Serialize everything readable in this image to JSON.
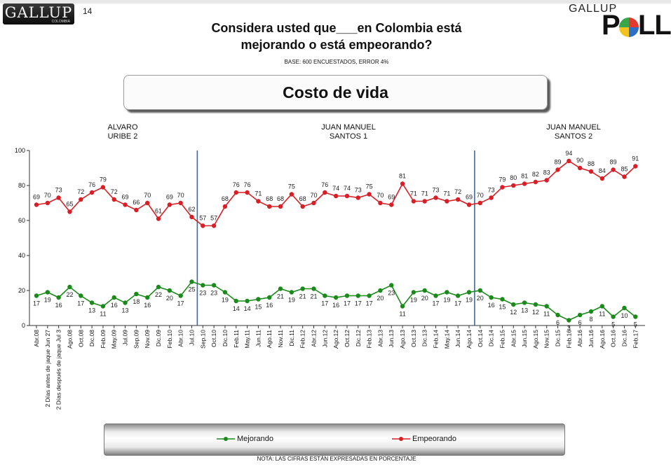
{
  "header": {
    "logo_left": "GALLUP",
    "logo_left_sub": "COLOMBIA",
    "page_number": "14",
    "logo_right_top": "GALLUP",
    "logo_right_p": "P",
    "logo_right_ll": "LL",
    "title_line1": "Considera usted que___en Colombia está",
    "title_line2": "mejorando o está empeorando?",
    "base": "BASE: 600 ENCUESTADOS, ERROR 4%",
    "topic": "Costo de vida",
    "note": "NOTA: LAS CIFRAS ESTÁN EXPRESADAS EN PORCENTAJE"
  },
  "periods": [
    {
      "line1": "ALVARO",
      "line2": "URIBE 2"
    },
    {
      "line1": "JUAN MANUEL",
      "line2": "SANTOS 1"
    },
    {
      "line1": "JUAN MANUEL",
      "line2": "SANTOS 2"
    }
  ],
  "colors": {
    "mejorando": "#1a8a1a",
    "empeorando": "#d81f26",
    "divider": "#3b6aa0"
  },
  "chart_data": {
    "type": "line",
    "ylim": [
      0,
      100
    ],
    "yticks": [
      0,
      20,
      40,
      60,
      80,
      100
    ],
    "categories": [
      "Abr.08",
      "2 Días antes de jaque Jun 27",
      "2 Días después de jaque Jul 3",
      "Ago.08",
      "Oct.08",
      "Dic.08",
      "Feb.09",
      "May.09",
      "Jul.09",
      "Sep.09",
      "Nov.09",
      "Dic.09",
      "Feb.10",
      "Abr.10",
      "Jul.10",
      "Sep.10",
      "Oct.10",
      "Dic.10",
      "Feb.11",
      "May.11",
      "Jun.11",
      "Ago.11",
      "Nov.11",
      "Dic.11",
      "Feb.12",
      "Abr.12",
      "Jun.12",
      "Ago.12",
      "Oct.12",
      "Dic.12",
      "Feb.13",
      "Abr.13",
      "Jun.13",
      "Ago.13",
      "Oct.13",
      "Dic.13",
      "Feb.14",
      "May.14",
      "Jun.14",
      "Ago.14",
      "Oct.14",
      "Dic.14",
      "Feb.15",
      "Abr.15",
      "Jun.15",
      "Ago.15",
      "Nov.15",
      "Dic.15",
      "Feb.16",
      "Abr.16",
      "Jun.16",
      "Ago.16",
      "Oct.16",
      "Dic.16",
      "Feb.17"
    ],
    "series": [
      {
        "name": "Mejorando",
        "values": [
          17,
          19,
          16,
          22,
          17,
          13,
          11,
          16,
          13,
          18,
          16,
          22,
          20,
          17,
          25,
          23,
          23,
          19,
          14,
          14,
          15,
          16,
          21,
          19,
          21,
          21,
          17,
          16,
          17,
          17,
          17,
          20,
          23,
          11,
          19,
          20,
          17,
          19,
          17,
          19,
          20,
          16,
          15,
          12,
          13,
          12,
          11,
          6,
          3,
          6,
          8,
          11,
          5,
          10,
          5
        ]
      },
      {
        "name": "Empeorando",
        "values": [
          69,
          70,
          73,
          65,
          72,
          76,
          79,
          72,
          69,
          66,
          70,
          61,
          69,
          70,
          62,
          57,
          57,
          68,
          76,
          76,
          71,
          68,
          68,
          75,
          68,
          70,
          76,
          74,
          74,
          73,
          75,
          70,
          69,
          81,
          71,
          71,
          73,
          71,
          72,
          69,
          70,
          73,
          79,
          80,
          81,
          82,
          83,
          89,
          94,
          90,
          88,
          84,
          89,
          85,
          91
        ]
      }
    ],
    "dividers_after": [
      "Jul.10",
      "Ago.14"
    ],
    "legend": [
      "Mejorando",
      "Empeorando"
    ],
    "legend_position": "bottom",
    "grid": false
  }
}
